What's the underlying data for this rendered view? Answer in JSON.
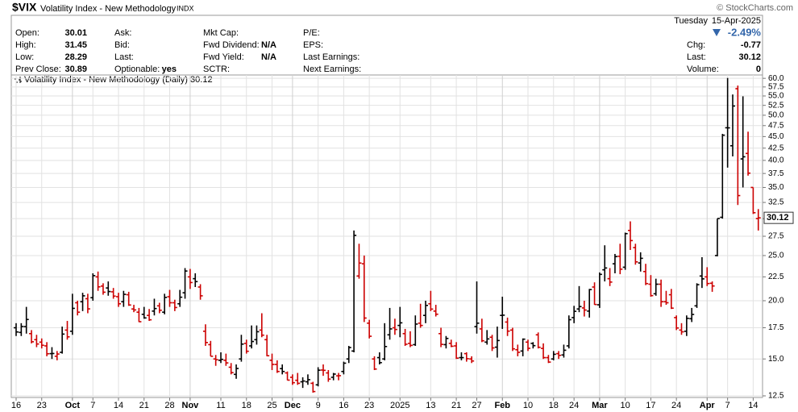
{
  "header": {
    "symbol": "$VIX",
    "name": "Volatility Index - New Methodology",
    "exchange": "INDX",
    "copyright": "© StockCharts.com",
    "day": "Tuesday",
    "date": "15-Apr-2025",
    "change_pct": "-2.49%",
    "columns": [
      [
        {
          "label": "Open:",
          "value": 30.01
        },
        {
          "label": "High:",
          "value": 31.45
        },
        {
          "label": "Low:",
          "value": 28.29
        },
        {
          "label": "Prev Close:",
          "value": 30.89
        }
      ],
      [
        {
          "label": "Ask:"
        },
        {
          "label": "Bid:"
        },
        {
          "label": "Last:"
        },
        {
          "label": "Optionable:",
          "value": "yes"
        }
      ],
      [
        {
          "label": "Mkt Cap:"
        },
        {
          "label": "Fwd Dividend:",
          "value": "N/A"
        },
        {
          "label": "Fwd Yield:",
          "value": "N/A"
        },
        {
          "label": "SCTR:"
        }
      ],
      [
        {
          "label": "P/E:"
        },
        {
          "label": "EPS:"
        },
        {
          "label": "Last Earnings:"
        },
        {
          "label": "Next Earnings:"
        }
      ]
    ],
    "quote": [
      {
        "label": "Chg:",
        "value": -0.77
      },
      {
        "label": "Last:",
        "value": 30.12
      },
      {
        "label": "Volume:",
        "value": 0
      }
    ]
  },
  "chart_data": {
    "type": "ohlc",
    "legend": "Volatility Index - New Methodology (Daily)",
    "up_color": "#000000",
    "down_color": "#cc0000",
    "log_scale": true,
    "grid": true,
    "ylim": [
      12.4,
      61.0
    ],
    "yticks": [
      {
        "value": 12.5,
        "label": "12.5"
      },
      {
        "value": 15,
        "label": "15.0"
      },
      {
        "value": 17.5,
        "label": "17.5"
      },
      {
        "value": 20,
        "label": "20.0"
      },
      {
        "value": 22.5,
        "label": "22.5"
      },
      {
        "value": 25,
        "label": "25.0"
      },
      {
        "value": 27.5,
        "label": "27.5"
      },
      {
        "value": 30,
        "label": "30.0"
      },
      {
        "value": 32.5,
        "label": "32.5"
      },
      {
        "value": 35,
        "label": "35.0"
      },
      {
        "value": 37.5,
        "label": "37.5"
      },
      {
        "value": 40,
        "label": "40.0"
      },
      {
        "value": 42.5,
        "label": "42.5"
      },
      {
        "value": 45,
        "label": "45.0"
      },
      {
        "value": 47.5,
        "label": "47.5"
      },
      {
        "value": 50,
        "label": "50.0"
      },
      {
        "value": 52.5,
        "label": "52.5"
      },
      {
        "value": 55,
        "label": "55.0"
      },
      {
        "value": 57.5,
        "label": "57.5"
      },
      {
        "value": 60,
        "label": "60.0"
      }
    ],
    "categories": [
      "16",
      null,
      null,
      null,
      null,
      "23",
      null,
      null,
      null,
      null,
      null,
      "Oct",
      null,
      null,
      null,
      "7",
      null,
      null,
      null,
      null,
      "14",
      null,
      null,
      null,
      null,
      "21",
      null,
      null,
      null,
      null,
      "28",
      null,
      null,
      null,
      "Nov",
      null,
      null,
      null,
      null,
      null,
      "11",
      null,
      null,
      null,
      null,
      "18",
      null,
      null,
      null,
      null,
      "25",
      null,
      null,
      null,
      "Dec",
      null,
      null,
      null,
      null,
      "9",
      null,
      null,
      null,
      null,
      "16",
      null,
      null,
      null,
      null,
      "23",
      null,
      null,
      null,
      null,
      null,
      "2025",
      null,
      null,
      null,
      null,
      null,
      "13",
      null,
      null,
      null,
      null,
      "21",
      null,
      null,
      null,
      "27",
      null,
      null,
      null,
      null,
      "Feb",
      null,
      null,
      null,
      null,
      "10",
      null,
      null,
      null,
      null,
      "18",
      null,
      null,
      null,
      "24",
      null,
      null,
      null,
      null,
      "Mar",
      null,
      null,
      null,
      null,
      "10",
      null,
      null,
      null,
      null,
      "17",
      null,
      null,
      null,
      null,
      "24",
      null,
      null,
      null,
      null,
      null,
      "Apr",
      null,
      null,
      null,
      "7",
      null,
      null,
      null,
      null,
      "14",
      null
    ],
    "open": [
      17.5,
      17.1,
      17.6,
      17.0,
      16.5,
      16.3,
      16.0,
      15.4,
      15.2,
      15.5,
      17.3,
      17.2,
      19.8,
      19.9,
      20.2,
      20.3,
      22.5,
      21.5,
      21.3,
      20.9,
      20.4,
      19.9,
      20.6,
      19.2,
      18.9,
      18.7,
      18.6,
      19.0,
      19.5,
      18.9,
      20.4,
      19.8,
      19.7,
      20.8,
      22.5,
      22.3,
      21.4,
      17.2,
      16.1,
      15.0,
      14.9,
      14.9,
      14.4,
      13.9,
      15.0,
      16.2,
      16.0,
      16.5,
      17.3,
      16.5,
      14.9,
      14.6,
      14.3,
      14.0,
      13.7,
      13.5,
      13.4,
      13.4,
      13.3,
      13.2,
      14.2,
      14.0,
      13.7,
      13.8,
      14.1,
      15.0,
      15.6,
      22.6,
      24.0,
      17.9,
      15.0,
      15.1,
      15.0,
      16.9,
      17.5,
      17.7,
      17.0,
      16.2,
      16.1,
      17.9,
      18.6,
      19.7,
      19.0,
      17.0,
      16.1,
      16.2,
      16.0,
      15.1,
      15.4,
      15.0,
      17.6,
      17.4,
      16.3,
      16.7,
      15.9,
      18.6,
      18.0,
      17.3,
      15.7,
      15.6,
      16.3,
      16.2,
      16.9,
      15.8,
      15.1,
      15.0,
      15.4,
      15.3,
      16.0,
      18.4,
      19.2,
      19.3,
      19.0,
      21.4,
      19.6,
      23.3,
      22.3,
      24.0,
      24.9,
      23.6,
      28.3,
      26.0,
      24.1,
      23.1,
      21.7,
      20.7,
      21.7,
      19.9,
      20.6,
      18.4,
      17.3,
      17.2,
      18.3,
      19.5,
      22.6,
      22.5,
      21.8,
      25.0,
      30.2,
      47.0,
      43.0,
      57.0,
      40.3,
      41.4,
      35.0,
      30.01
    ],
    "high": [
      17.9,
      17.9,
      19.4,
      17.3,
      16.9,
      16.6,
      16.3,
      15.9,
      15.6,
      17.6,
      18.1,
      20.7,
      20.0,
      20.8,
      20.7,
      22.9,
      23.1,
      21.8,
      22.0,
      21.3,
      20.8,
      21.0,
      20.9,
      19.6,
      19.3,
      19.4,
      19.2,
      20.2,
      19.8,
      20.7,
      21.1,
      20.1,
      21.1,
      23.5,
      23.4,
      22.9,
      21.7,
      17.8,
      16.4,
      15.3,
      15.5,
      15.4,
      14.7,
      14.6,
      16.9,
      16.5,
      17.7,
      17.7,
      18.8,
      16.9,
      15.4,
      14.9,
      14.6,
      14.1,
      13.9,
      14.0,
      13.7,
      13.9,
      13.4,
      14.4,
      14.6,
      14.2,
      14.0,
      14.0,
      14.8,
      16.0,
      28.3,
      26.5,
      25.0,
      18.2,
      15.2,
      15.5,
      17.9,
      19.3,
      18.3,
      19.4,
      17.4,
      17.2,
      18.6,
      19.7,
      20.0,
      21.0,
      19.6,
      17.5,
      16.8,
      16.5,
      16.3,
      15.5,
      15.5,
      15.2,
      22.0,
      18.3,
      17.3,
      16.9,
      17.6,
      20.4,
      18.4,
      17.5,
      16.1,
      16.6,
      16.5,
      16.3,
      17.1,
      16.2,
      15.3,
      15.6,
      15.6,
      16.1,
      18.6,
      19.5,
      21.5,
      20.0,
      21.2,
      21.9,
      23.0,
      26.3,
      23.5,
      25.2,
      26.5,
      28.0,
      29.6,
      26.5,
      25.4,
      24.0,
      22.7,
      22.3,
      22.2,
      21.0,
      21.2,
      18.6,
      17.9,
      18.6,
      19.3,
      21.8,
      24.8,
      23.6,
      22.0,
      30.0,
      45.6,
      60.1,
      55.4,
      57.9,
      54.9,
      46.1,
      35.0,
      31.45
    ],
    "low": [
      16.8,
      16.8,
      17.0,
      16.2,
      15.9,
      15.8,
      15.2,
      15.0,
      14.9,
      15.4,
      16.5,
      16.9,
      18.6,
      19.0,
      18.8,
      20.0,
      21.0,
      20.6,
      20.5,
      20.2,
      19.4,
      19.4,
      19.5,
      18.9,
      18.0,
      18.3,
      18.1,
      18.6,
      18.8,
      18.7,
      19.4,
      19.0,
      19.4,
      20.2,
      21.2,
      21.4,
      20.1,
      16.0,
      15.2,
      14.5,
      14.7,
      14.5,
      13.9,
      13.6,
      14.8,
      15.4,
      15.8,
      16.1,
      16.7,
      15.2,
      14.2,
      14.0,
      13.9,
      13.5,
      13.2,
      13.2,
      13.0,
      13.2,
      12.7,
      13.1,
      13.8,
      13.4,
      13.5,
      13.5,
      13.9,
      14.7,
      15.5,
      22.3,
      18.0,
      16.6,
      14.2,
      14.6,
      14.9,
      16.5,
      16.9,
      16.7,
      16.0,
      15.9,
      16.0,
      17.5,
      17.9,
      19.0,
      18.5,
      15.9,
      15.8,
      15.9,
      15.0,
      14.9,
      14.8,
      14.7,
      17.0,
      16.3,
      16.1,
      15.6,
      15.1,
      17.4,
      16.8,
      15.6,
      15.2,
      15.2,
      15.6,
      15.8,
      15.8,
      15.0,
      14.7,
      14.9,
      15.0,
      15.1,
      15.8,
      17.9,
      18.9,
      18.5,
      18.4,
      19.6,
      19.3,
      22.0,
      21.5,
      22.9,
      22.8,
      23.3,
      25.7,
      23.9,
      23.1,
      21.6,
      20.4,
      20.5,
      19.4,
      19.6,
      19.2,
      17.3,
      16.9,
      16.8,
      18.0,
      19.3,
      21.3,
      21.5,
      20.9,
      24.9,
      30.0,
      38.6,
      40.8,
      32.1,
      35.0,
      37.1,
      30.7,
      28.29
    ],
    "close": [
      17.14,
      17.61,
      18.23,
      16.33,
      16.15,
      16.05,
      15.39,
      15.41,
      15.37,
      16.96,
      16.73,
      19.26,
      18.9,
      20.49,
      19.21,
      22.64,
      21.42,
      20.86,
      20.93,
      20.46,
      19.7,
      20.64,
      19.58,
      19.11,
      18.03,
      18.37,
      18.2,
      19.24,
      19.08,
      20.33,
      19.8,
      19.34,
      20.35,
      23.16,
      21.88,
      21.98,
      20.49,
      16.27,
      15.2,
      14.94,
      14.97,
      14.71,
      14.02,
      14.31,
      16.14,
      15.58,
      16.35,
      17.16,
      16.87,
      15.24,
      14.6,
      14.1,
      14.1,
      13.51,
      13.34,
      13.3,
      13.45,
      13.54,
      12.77,
      14.19,
      14.18,
      13.58,
      13.92,
      13.81,
      14.69,
      15.87,
      27.62,
      24.09,
      18.36,
      16.78,
      14.27,
      14.73,
      15.95,
      17.4,
      17.35,
      17.93,
      16.13,
      16.04,
      17.82,
      17.7,
      19.54,
      19.19,
      18.71,
      16.12,
      16.6,
      15.97,
      15.06,
      15.1,
      15.02,
      14.85,
      17.9,
      16.41,
      16.56,
      15.84,
      16.43,
      18.62,
      17.21,
      15.77,
      15.5,
      16.54,
      15.81,
      16.02,
      15.89,
      15.1,
      14.77,
      15.35,
      15.27,
      15.66,
      18.21,
      18.98,
      19.43,
      19.1,
      21.13,
      19.63,
      22.78,
      23.51,
      21.93,
      24.87,
      23.37,
      27.86,
      26.92,
      24.23,
      24.66,
      21.77,
      20.51,
      21.7,
      19.9,
      19.8,
      19.28,
      17.48,
      17.15,
      18.33,
      18.69,
      21.65,
      22.28,
      21.77,
      21.51,
      30.02,
      45.31,
      46.98,
      52.33,
      33.62,
      40.72,
      37.56,
      30.89,
      30.12
    ]
  }
}
